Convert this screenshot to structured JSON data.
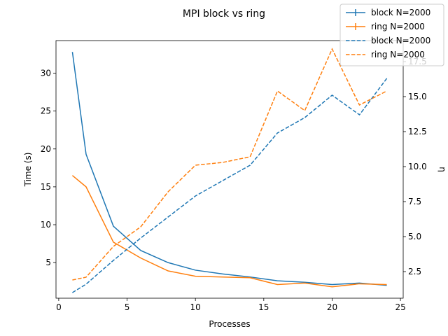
{
  "chart_data": {
    "type": "line",
    "title": "MPI block vs ring",
    "xlabel": "Processes",
    "ylabel_left": "Time (s)",
    "ylabel_right": "η",
    "xlim": [
      -0.2,
      25.2
    ],
    "ylim_left": [
      0.3,
      34.3
    ],
    "ylim_right": [
      0.6,
      19.0
    ],
    "xticks": [
      0,
      5,
      10,
      15,
      20,
      25
    ],
    "yticks_left": [
      5,
      10,
      15,
      20,
      25,
      30
    ],
    "yticks_right": [
      2.5,
      5.0,
      7.5,
      10.0,
      12.5,
      15.0,
      17.5
    ],
    "x": [
      1,
      2,
      4,
      6,
      8,
      10,
      12,
      14,
      16,
      18,
      20,
      22,
      24
    ],
    "series": [
      {
        "name": "block N=2000",
        "axis": "left",
        "style": "solid",
        "color": "#1f77b4",
        "values": [
          32.8,
          19.3,
          9.8,
          6.6,
          5.0,
          4.0,
          3.5,
          3.1,
          2.6,
          2.4,
          2.1,
          2.3,
          2.0
        ]
      },
      {
        "name": "ring N=2000",
        "axis": "left",
        "style": "solid",
        "color": "#ff7f0e",
        "values": [
          16.5,
          15.0,
          7.7,
          5.6,
          3.9,
          3.2,
          3.1,
          3.0,
          2.1,
          2.3,
          1.8,
          2.2,
          2.1
        ]
      },
      {
        "name": "block N=2000",
        "axis": "right",
        "style": "dashed",
        "color": "#1f77b4",
        "values": [
          1.0,
          1.6,
          3.3,
          4.9,
          6.4,
          7.9,
          9.0,
          10.1,
          12.4,
          13.5,
          15.1,
          13.7,
          16.3
        ]
      },
      {
        "name": "ring N=2000",
        "axis": "right",
        "style": "dashed",
        "color": "#ff7f0e",
        "values": [
          1.9,
          2.1,
          4.3,
          5.7,
          8.2,
          10.1,
          10.3,
          10.7,
          15.4,
          14.0,
          18.4,
          14.4,
          15.4
        ]
      }
    ],
    "legend_position": "top-right"
  }
}
